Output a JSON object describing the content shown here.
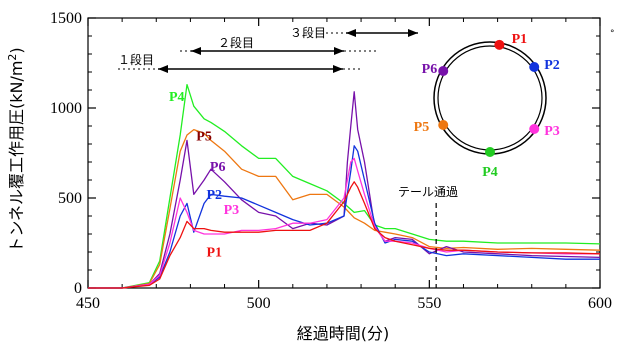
{
  "chart_data": {
    "type": "line",
    "xlabel": "経過時間(分)",
    "ylabel_main": "トンネル覆工作用圧",
    "ylabel_unit": "(kN/m",
    "ylabel_sup": "2",
    "ylabel_close": ")",
    "xlim": [
      450,
      600
    ],
    "ylim": [
      0,
      1500
    ],
    "x_ticks": [
      "450",
      "500",
      "550",
      "600"
    ],
    "y_ticks": [
      "0",
      "500",
      "1000",
      "1500"
    ],
    "grid": false,
    "annotations": {
      "stage1": "１段目",
      "stage2": "２段目",
      "stage3": "３段目",
      "tail_pass": "テール通過",
      "tail_pass_x": 552
    },
    "ring_legend": [
      {
        "name": "P1",
        "color": "#ee1111"
      },
      {
        "name": "P2",
        "color": "#1133dd"
      },
      {
        "name": "P3",
        "color": "#ff33dd"
      },
      {
        "name": "P4",
        "color": "#22cc22"
      },
      {
        "name": "P5",
        "color": "#ee7711"
      },
      {
        "name": "P6",
        "color": "#7711aa"
      }
    ],
    "series": [
      {
        "name": "P4",
        "color": "#22ee22",
        "x": [
          450,
          460,
          468,
          471,
          474,
          477,
          479,
          481,
          484,
          486,
          490,
          495,
          500,
          505,
          510,
          515,
          520,
          525,
          528,
          531,
          534,
          537,
          540,
          545,
          550,
          555,
          560,
          570,
          580,
          590,
          600
        ],
        "y": [
          0,
          0,
          30,
          150,
          500,
          850,
          1130,
          1010,
          940,
          920,
          870,
          790,
          720,
          720,
          620,
          580,
          540,
          470,
          420,
          430,
          350,
          330,
          330,
          300,
          270,
          260,
          260,
          250,
          250,
          250,
          245
        ]
      },
      {
        "name": "P5",
        "color": "#ee7711",
        "x": [
          450,
          460,
          468,
          471,
          474,
          477,
          479,
          481,
          484,
          486,
          490,
          495,
          500,
          505,
          510,
          515,
          520,
          525,
          528,
          531,
          534,
          537,
          540,
          545,
          550,
          555,
          560,
          570,
          580,
          590,
          600
        ],
        "y": [
          0,
          0,
          25,
          130,
          440,
          760,
          850,
          880,
          860,
          820,
          760,
          660,
          620,
          620,
          490,
          520,
          520,
          450,
          390,
          360,
          320,
          310,
          300,
          280,
          230,
          220,
          225,
          215,
          220,
          215,
          210
        ]
      },
      {
        "name": "P6",
        "color": "#7711aa",
        "x": [
          450,
          460,
          468,
          471,
          474,
          477,
          479,
          481,
          484,
          486,
          490,
          495,
          500,
          505,
          510,
          515,
          520,
          525,
          526,
          527,
          528,
          529,
          531,
          534,
          537,
          540,
          545,
          550,
          555,
          560,
          570,
          580,
          590,
          600
        ],
        "y": [
          0,
          0,
          20,
          80,
          300,
          600,
          820,
          520,
          600,
          660,
          590,
          490,
          420,
          400,
          330,
          360,
          350,
          400,
          700,
          900,
          1090,
          880,
          700,
          340,
          260,
          280,
          270,
          190,
          230,
          200,
          190,
          180,
          175,
          170
        ]
      },
      {
        "name": "P2",
        "color": "#1133dd",
        "x": [
          450,
          460,
          468,
          471,
          474,
          477,
          479,
          481,
          484,
          486,
          490,
          495,
          500,
          505,
          510,
          515,
          520,
          525,
          527,
          528,
          529,
          531,
          534,
          537,
          540,
          545,
          550,
          555,
          560,
          570,
          580,
          590,
          600
        ],
        "y": [
          0,
          0,
          20,
          60,
          200,
          400,
          470,
          310,
          470,
          520,
          510,
          500,
          460,
          420,
          380,
          350,
          360,
          400,
          650,
          790,
          760,
          600,
          360,
          250,
          270,
          260,
          200,
          180,
          190,
          180,
          170,
          160,
          160
        ]
      },
      {
        "name": "P3",
        "color": "#ff33dd",
        "x": [
          450,
          460,
          468,
          471,
          474,
          477,
          479,
          481,
          484,
          486,
          490,
          495,
          500,
          505,
          510,
          515,
          520,
          525,
          527,
          528,
          529,
          531,
          534,
          537,
          540,
          545,
          550,
          555,
          560,
          570,
          580,
          590,
          600
        ],
        "y": [
          0,
          0,
          20,
          70,
          250,
          500,
          420,
          320,
          300,
          300,
          300,
          320,
          320,
          330,
          360,
          360,
          380,
          500,
          700,
          720,
          650,
          520,
          340,
          260,
          260,
          250,
          220,
          200,
          210,
          200,
          195,
          190,
          190
        ]
      },
      {
        "name": "P1",
        "color": "#ee1111",
        "x": [
          450,
          460,
          468,
          471,
          474,
          477,
          479,
          481,
          484,
          486,
          490,
          495,
          500,
          505,
          510,
          515,
          520,
          525,
          527,
          528,
          529,
          531,
          534,
          537,
          540,
          545,
          550,
          555,
          560,
          570,
          580,
          590,
          600
        ],
        "y": [
          0,
          0,
          15,
          50,
          180,
          280,
          370,
          330,
          330,
          320,
          310,
          310,
          310,
          320,
          320,
          320,
          360,
          480,
          560,
          590,
          560,
          470,
          330,
          280,
          260,
          240,
          220,
          210,
          210,
          200,
          195,
          195,
          190
        ]
      }
    ],
    "series_labels": [
      {
        "name": "P4",
        "color": "#22ee22",
        "x": 476,
        "y": 1040
      },
      {
        "name": "P5",
        "color": "#880000",
        "x": 484,
        "y": 820
      },
      {
        "name": "P6",
        "color": "#7711aa",
        "x": 488,
        "y": 650
      },
      {
        "name": "P2",
        "color": "#1133dd",
        "x": 487,
        "y": 495
      },
      {
        "name": "P3",
        "color": "#ff33dd",
        "x": 492,
        "y": 410
      },
      {
        "name": "P1",
        "color": "#ee1111",
        "x": 487,
        "y": 175
      }
    ]
  }
}
